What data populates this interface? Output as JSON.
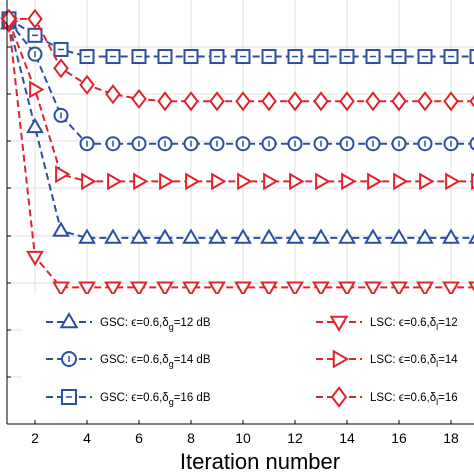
{
  "chart_data": {
    "type": "line",
    "title": "",
    "xlabel": "Iteration number",
    "ylabel": "",
    "xlim": [
      1,
      18.5
    ],
    "ylim": [
      0,
      9
    ],
    "x_ticks": [
      "2",
      "4",
      "6",
      "8",
      "10",
      "12",
      "14",
      "16",
      "18"
    ],
    "grid": true,
    "series": [
      {
        "name": "GSC: ϵ=0.6,δg=12 dB",
        "color": "#2b4fa3",
        "marker": "triangle-up",
        "x": [
          1,
          2,
          3,
          4,
          5,
          6,
          7,
          8,
          9,
          10,
          11,
          12,
          13,
          14,
          15,
          16,
          17,
          18,
          19
        ],
        "y": [
          8.5,
          6.3,
          4.1,
          3.95,
          3.95,
          3.95,
          3.95,
          3.95,
          3.95,
          3.95,
          3.95,
          3.95,
          3.95,
          3.95,
          3.95,
          3.95,
          3.95,
          3.95,
          3.95
        ]
      },
      {
        "name": "GSC: ϵ=0.6,δg=14 dB",
        "color": "#2b4fa3",
        "marker": "circle",
        "x": [
          1,
          2,
          3,
          4,
          5,
          6,
          7,
          8,
          9,
          10,
          11,
          12,
          13,
          14,
          15,
          16,
          17,
          18,
          19
        ],
        "y": [
          8.55,
          7.85,
          6.55,
          5.95,
          5.95,
          5.95,
          5.95,
          5.95,
          5.95,
          5.95,
          5.95,
          5.95,
          5.95,
          5.95,
          5.95,
          5.95,
          5.95,
          5.95,
          5.95
        ]
      },
      {
        "name": "GSC: ϵ=0.6,δg=16 dB",
        "color": "#2b4fa3",
        "marker": "square",
        "x": [
          1,
          2,
          3,
          4,
          5,
          6,
          7,
          8,
          9,
          10,
          11,
          12,
          13,
          14,
          15,
          16,
          17,
          18,
          19
        ],
        "y": [
          8.6,
          8.25,
          7.95,
          7.8,
          7.8,
          7.8,
          7.8,
          7.8,
          7.8,
          7.8,
          7.8,
          7.8,
          7.8,
          7.8,
          7.8,
          7.8,
          7.8,
          7.8,
          7.8
        ]
      },
      {
        "name": "LSC: ϵ=0.6,δl=12",
        "color": "#e0242b",
        "marker": "triangle-down",
        "x": [
          1,
          2,
          3,
          4,
          5,
          6,
          7,
          8,
          9,
          10,
          11,
          12,
          13,
          14,
          15,
          16,
          17,
          18,
          19
        ],
        "y": [
          8.5,
          3.55,
          2.9,
          2.9,
          2.9,
          2.9,
          2.9,
          2.9,
          2.9,
          2.9,
          2.9,
          2.9,
          2.9,
          2.9,
          2.9,
          2.9,
          2.9,
          2.9,
          2.9
        ]
      },
      {
        "name": "LSC: ϵ=0.6,δl=14",
        "color": "#e0242b",
        "marker": "triangle-right",
        "x": [
          1,
          2,
          3,
          4,
          5,
          6,
          7,
          8,
          9,
          10,
          11,
          12,
          13,
          14,
          15,
          16,
          17,
          18,
          19
        ],
        "y": [
          8.55,
          7.1,
          5.3,
          5.15,
          5.15,
          5.15,
          5.15,
          5.15,
          5.15,
          5.15,
          5.15,
          5.15,
          5.15,
          5.15,
          5.15,
          5.15,
          5.15,
          5.15,
          5.15
        ]
      },
      {
        "name": "LSC: ϵ=0.6,δl=16",
        "color": "#e0242b",
        "marker": "diamond",
        "x": [
          1,
          2,
          3,
          4,
          5,
          6,
          7,
          8,
          9,
          10,
          11,
          12,
          13,
          14,
          15,
          16,
          17,
          18,
          19
        ],
        "y": [
          8.6,
          8.6,
          7.55,
          7.2,
          7.0,
          6.9,
          6.85,
          6.85,
          6.85,
          6.85,
          6.85,
          6.85,
          6.85,
          6.85,
          6.85,
          6.85,
          6.85,
          6.85,
          6.85
        ]
      }
    ],
    "legend": {
      "placement": "lower-center",
      "entries": [
        {
          "prefix": "GSC: ",
          "eps": "ϵ=0.6,δ",
          "sub": "g",
          "suffix": "=12 dB"
        },
        {
          "prefix": "GSC: ",
          "eps": "ϵ=0.6,δ",
          "sub": "g",
          "suffix": "=14 dB"
        },
        {
          "prefix": "GSC: ",
          "eps": "ϵ=0.6,δ",
          "sub": "g",
          "suffix": "=16 dB"
        },
        {
          "prefix": "LSC: ",
          "eps": "ϵ=0.6,δ",
          "sub": "l",
          "suffix": "=12"
        },
        {
          "prefix": "LSC: ",
          "eps": "ϵ=0.6,δ",
          "sub": "l",
          "suffix": "=14"
        },
        {
          "prefix": "LSC: ",
          "eps": "ϵ=0.6,δ",
          "sub": "l",
          "suffix": "=16"
        }
      ]
    }
  }
}
